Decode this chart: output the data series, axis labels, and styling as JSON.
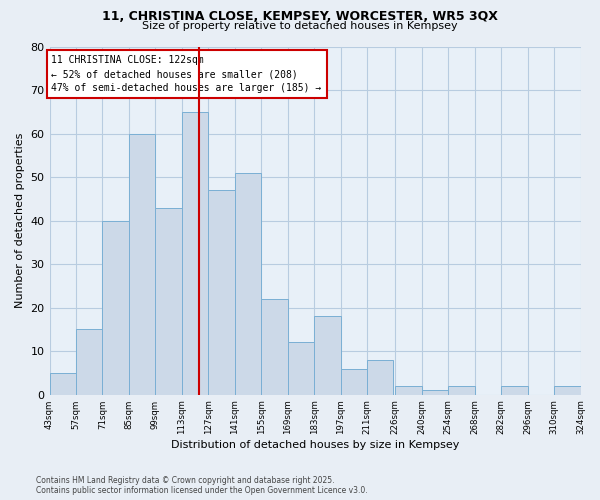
{
  "title1": "11, CHRISTINA CLOSE, KEMPSEY, WORCESTER, WR5 3QX",
  "title2": "Size of property relative to detached houses in Kempsey",
  "xlabel": "Distribution of detached houses by size in Kempsey",
  "ylabel": "Number of detached properties",
  "bin_starts": [
    43,
    57,
    71,
    85,
    99,
    113,
    127,
    141,
    155,
    169,
    183,
    197,
    211,
    226,
    240,
    254,
    268,
    282,
    296,
    310
  ],
  "bin_width": 14,
  "bar_heights": [
    5,
    15,
    40,
    60,
    43,
    65,
    47,
    51,
    22,
    12,
    18,
    6,
    8,
    2,
    1,
    2,
    0,
    2,
    0,
    2
  ],
  "bar_color": "#ccd9e8",
  "bar_edge_color": "#7aafd4",
  "vline_x": 122,
  "vline_color": "#cc0000",
  "annotation_title": "11 CHRISTINA CLOSE: 122sqm",
  "annotation_line1": "← 52% of detached houses are smaller (208)",
  "annotation_line2": "47% of semi-detached houses are larger (185) →",
  "annotation_box_color": "#cc0000",
  "ylim": [
    0,
    80
  ],
  "yticks": [
    0,
    10,
    20,
    30,
    40,
    50,
    60,
    70,
    80
  ],
  "tick_labels": [
    "43sqm",
    "57sqm",
    "71sqm",
    "85sqm",
    "99sqm",
    "113sqm",
    "127sqm",
    "141sqm",
    "155sqm",
    "169sqm",
    "183sqm",
    "197sqm",
    "211sqm",
    "226sqm",
    "240sqm",
    "254sqm",
    "268sqm",
    "282sqm",
    "296sqm",
    "310sqm",
    "324sqm"
  ],
  "footnote1": "Contains HM Land Registry data © Crown copyright and database right 2025.",
  "footnote2": "Contains public sector information licensed under the Open Government Licence v3.0.",
  "bg_color": "#e8eef5",
  "plot_bg_color": "#e8f0f8",
  "grid_color": "#b8cce0"
}
